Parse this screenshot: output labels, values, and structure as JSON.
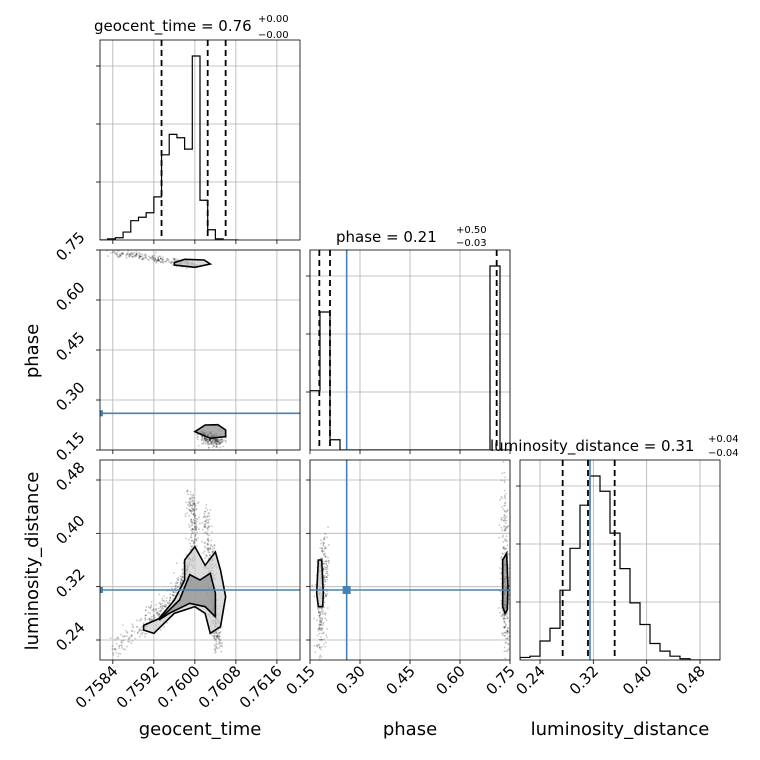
{
  "chart_data": {
    "type": "corner",
    "parameters": [
      "geocent_time",
      "phase",
      "luminosity_distance"
    ],
    "truths": {
      "phase": 0.26,
      "luminosity_distance": 0.315
    },
    "colors": {
      "truth": "#4682b4",
      "hist": "#000000",
      "quantile": "#000000",
      "grid": "#b0b0b0"
    },
    "grid": true,
    "titles": [
      {
        "param": "geocent_time",
        "text": "geocent_time = 0.76",
        "sup": "+0.00",
        "sub": "−0.00"
      },
      {
        "param": "phase",
        "text": "phase = 0.21",
        "sup": "+0.50",
        "sub": "−0.03"
      },
      {
        "param": "luminosity_distance",
        "text": "luminosity_distance = 0.31",
        "sup": "+0.04",
        "sub": "−0.04"
      }
    ],
    "axes": {
      "geocent_time": {
        "label": "geocent_time",
        "range": [
          0.75815,
          0.76205
        ],
        "ticks": [
          0.7584,
          0.7592,
          0.76,
          0.7608,
          0.7616
        ],
        "tick_labels": [
          "0.7584",
          "0.7592",
          "0.7600",
          "0.7608",
          "0.7616"
        ]
      },
      "phase": {
        "label": "phase",
        "range": [
          0.15,
          0.75
        ],
        "ticks": [
          0.15,
          0.3,
          0.45,
          0.6,
          0.75
        ],
        "tick_labels": [
          "0.15",
          "0.30",
          "0.45",
          "0.60",
          "0.75"
        ]
      },
      "luminosity_distance": {
        "label": "luminosity_distance",
        "range": [
          0.21,
          0.51
        ],
        "ticks": [
          0.24,
          0.32,
          0.4,
          0.48
        ],
        "tick_labels": [
          "0.24",
          "0.32",
          "0.40",
          "0.48"
        ]
      }
    },
    "histograms": {
      "geocent_time": {
        "bin_edges": [
          0.75815,
          0.7583,
          0.75845,
          0.7586,
          0.75875,
          0.7589,
          0.75905,
          0.7592,
          0.75935,
          0.7595,
          0.75965,
          0.7598,
          0.75995,
          0.7601,
          0.76025,
          0.7604,
          0.76055,
          0.7607,
          0.76085
        ],
        "counts": [
          0,
          1,
          2,
          7,
          17,
          20,
          24,
          38,
          75,
          93,
          90,
          80,
          162,
          35,
          9,
          1,
          0,
          0
        ],
        "quantiles": [
          0.75935,
          0.76025,
          0.7606
        ]
      },
      "phase": {
        "bin_edges": [
          0.15,
          0.18,
          0.21,
          0.24,
          0.27,
          0.3,
          0.33,
          0.36,
          0.39,
          0.42,
          0.45,
          0.48,
          0.51,
          0.54,
          0.57,
          0.6,
          0.63,
          0.66,
          0.69,
          0.72,
          0.75
        ],
        "counts": [
          58,
          135,
          10,
          0,
          0,
          0,
          0,
          0,
          0,
          0,
          0,
          0,
          0,
          0,
          0,
          0,
          0,
          0,
          180,
          0
        ],
        "quantiles": [
          0.178,
          0.21,
          0.71
        ]
      },
      "luminosity_distance": {
        "bin_edges": [
          0.21,
          0.225,
          0.24,
          0.255,
          0.27,
          0.285,
          0.3,
          0.315,
          0.33,
          0.345,
          0.36,
          0.375,
          0.39,
          0.405,
          0.42,
          0.435,
          0.45,
          0.465,
          0.48,
          0.495,
          0.51
        ],
        "counts": [
          2,
          3,
          15,
          25,
          55,
          88,
          122,
          145,
          133,
          100,
          72,
          45,
          28,
          13,
          7,
          3,
          1,
          0,
          0,
          0
        ],
        "quantiles": [
          0.274,
          0.312,
          0.352
        ]
      }
    },
    "panels_2d": [
      {
        "x": "geocent_time",
        "y": "phase",
        "clusters": [
          {
            "path": [
              [
                0.7584,
                0.744
              ],
              [
                0.759,
                0.73
              ],
              [
                0.7596,
                0.714
              ],
              [
                0.76,
                0.704
              ]
            ],
            "spread": [
              8e-05,
              0.005
            ],
            "n": 260
          },
          {
            "path": [
              [
                0.76015,
                0.195
              ],
              [
                0.76045,
                0.175
              ]
            ],
            "spread": [
              8e-05,
              0.01
            ],
            "n": 260
          }
        ],
        "contours": [
          [
            [
              0.7596,
              0.712
            ],
            [
              0.7598,
              0.722
            ],
            [
              0.76018,
              0.72
            ],
            [
              0.7603,
              0.708
            ],
            [
              0.76,
              0.698
            ],
            [
              0.7596,
              0.705
            ]
          ],
          [
            [
              0.76,
              0.205
            ],
            [
              0.7602,
              0.225
            ],
            [
              0.76045,
              0.226
            ],
            [
              0.7606,
              0.21
            ],
            [
              0.7606,
              0.19
            ],
            [
              0.7603,
              0.185
            ]
          ]
        ]
      },
      {
        "x": "geocent_time",
        "y": "luminosity_distance",
        "clusters": [
          {
            "path": [
              [
                0.7584,
                0.225
              ],
              [
                0.759,
                0.265
              ],
              [
                0.7594,
                0.285
              ],
              [
                0.7597,
                0.32
              ],
              [
                0.7599,
                0.35
              ],
              [
                0.76,
                0.41
              ],
              [
                0.7599,
                0.455
              ]
            ],
            "spread": [
              5e-05,
              0.01
            ],
            "n": 520
          },
          {
            "path": [
              [
                0.7602,
                0.43
              ],
              [
                0.7603,
                0.36
              ],
              [
                0.76035,
                0.3
              ],
              [
                0.7604,
                0.26
              ],
              [
                0.76045,
                0.232
              ]
            ],
            "spread": [
              5e-05,
              0.012
            ],
            "n": 360
          }
        ],
        "contours": [
          [
            [
              0.759,
              0.262
            ],
            [
              0.7593,
              0.272
            ],
            [
              0.7596,
              0.3
            ],
            [
              0.7598,
              0.33
            ],
            [
              0.7598,
              0.36
            ],
            [
              0.76,
              0.38
            ],
            [
              0.7602,
              0.352
            ],
            [
              0.7604,
              0.372
            ],
            [
              0.7605,
              0.345
            ],
            [
              0.7606,
              0.305
            ],
            [
              0.7605,
              0.26
            ],
            [
              0.7603,
              0.25
            ],
            [
              0.7602,
              0.28
            ],
            [
              0.76,
              0.29
            ],
            [
              0.7596,
              0.28
            ],
            [
              0.7592,
              0.25
            ],
            [
              0.759,
              0.255
            ]
          ],
          [
            [
              0.7593,
              0.27
            ],
            [
              0.7597,
              0.3
            ],
            [
              0.7599,
              0.338
            ],
            [
              0.7601,
              0.33
            ],
            [
              0.7603,
              0.34
            ],
            [
              0.7604,
              0.31
            ],
            [
              0.7604,
              0.275
            ],
            [
              0.7602,
              0.29
            ],
            [
              0.7599,
              0.295
            ],
            [
              0.7595,
              0.28
            ]
          ]
        ]
      },
      {
        "x": "phase",
        "y": "luminosity_distance",
        "clusters": [
          {
            "path": [
              [
                0.18,
                0.23
              ],
              [
                0.185,
                0.3
              ],
              [
                0.19,
                0.34
              ],
              [
                0.195,
                0.38
              ]
            ],
            "spread": [
              0.008,
              0.02
            ],
            "n": 280
          },
          {
            "path": [
              [
                0.732,
                0.46
              ],
              [
                0.735,
                0.34
              ],
              [
                0.735,
                0.3
              ],
              [
                0.738,
                0.24
              ]
            ],
            "spread": [
              0.006,
              0.02
            ],
            "n": 320
          }
        ],
        "contours": [
          [
            [
              0.17,
              0.31
            ],
            [
              0.175,
              0.36
            ],
            [
              0.185,
              0.36
            ],
            [
              0.19,
              0.31
            ],
            [
              0.188,
              0.29
            ],
            [
              0.175,
              0.29
            ]
          ],
          [
            [
              0.728,
              0.29
            ],
            [
              0.728,
              0.36
            ],
            [
              0.74,
              0.37
            ],
            [
              0.744,
              0.32
            ],
            [
              0.742,
              0.285
            ],
            [
              0.735,
              0.28
            ]
          ]
        ]
      }
    ]
  }
}
